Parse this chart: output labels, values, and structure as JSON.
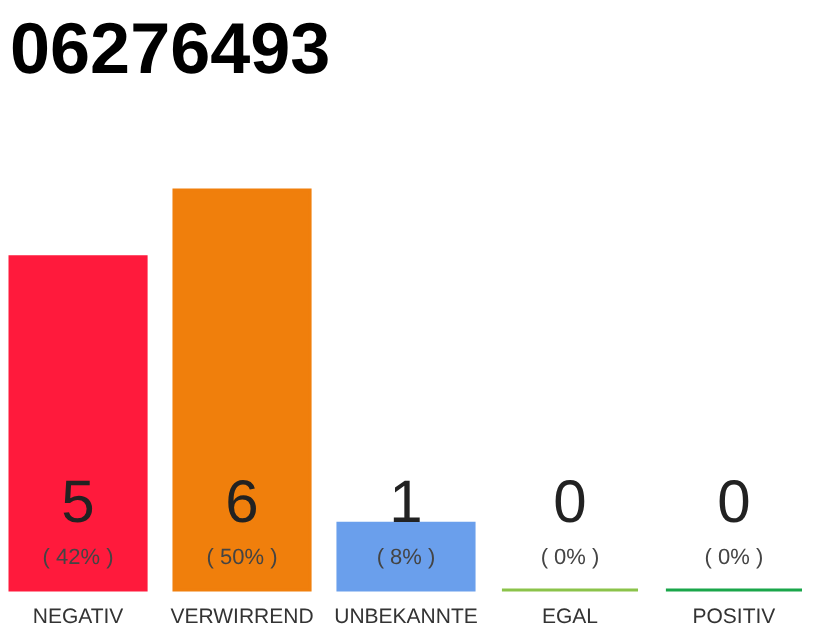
{
  "chart_data": {
    "type": "bar",
    "title": "06276493",
    "categories": [
      "NEGATIV",
      "VERWIRREND",
      "UNBEKANNTE",
      "EGAL",
      "POSITIV"
    ],
    "values": [
      5,
      6,
      1,
      0,
      0
    ],
    "colors": [
      "#ff1a3c",
      "#f07f0c",
      "#6a9fec",
      "#8bc34a",
      "#1aa64a"
    ],
    "ylim": [
      0,
      6
    ],
    "data_labels": true,
    "annotations": [
      "( 42% )",
      "( 50% )",
      "( 8% )",
      "( 0% )",
      "( 0% )"
    ],
    "tick_labels": "x",
    "grid": false
  }
}
